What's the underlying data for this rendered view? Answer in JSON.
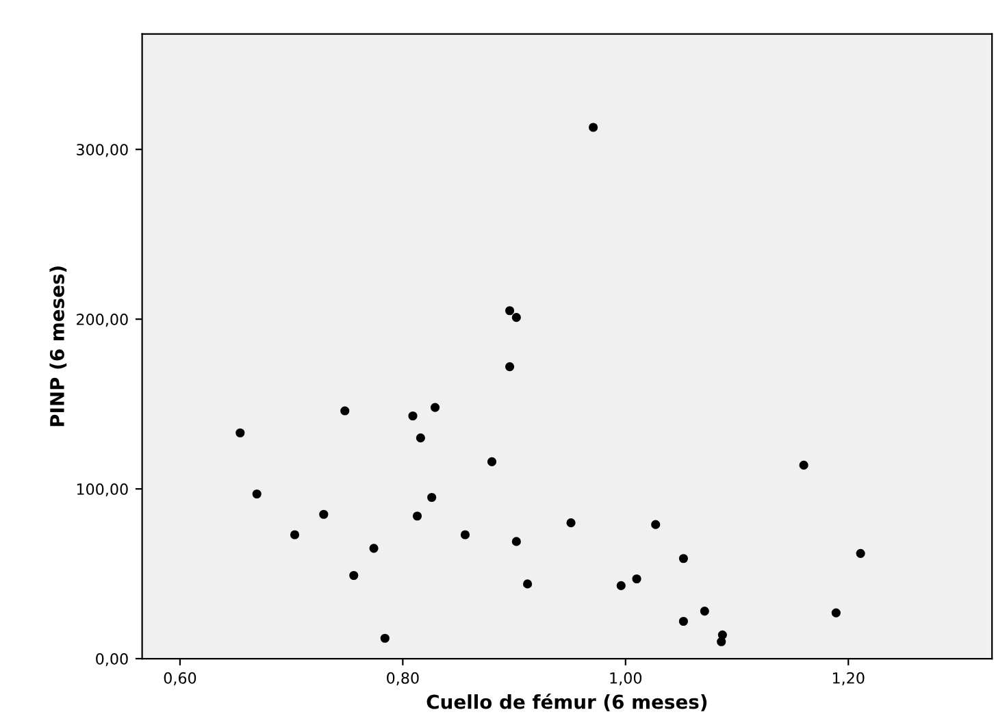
{
  "chart_data": {
    "type": "scatter",
    "xlabel": "Cuello de fémur (6 meses)",
    "ylabel": "PINP (6 meses)",
    "x": [
      0.654,
      0.669,
      0.703,
      0.729,
      0.748,
      0.756,
      0.774,
      0.784,
      0.809,
      0.813,
      0.816,
      0.826,
      0.829,
      0.856,
      0.88,
      0.896,
      0.896,
      0.902,
      0.902,
      0.912,
      0.951,
      0.971,
      0.996,
      1.01,
      1.027,
      1.052,
      1.052,
      1.071,
      1.087,
      1.086,
      1.16,
      1.211,
      1.189
    ],
    "values": [
      133,
      97,
      73,
      85,
      146,
      49,
      65,
      12,
      143,
      84,
      130,
      95,
      148,
      73,
      116,
      205,
      172,
      201,
      69,
      44,
      80,
      313,
      43,
      47,
      79,
      59,
      22,
      28,
      14,
      10,
      114,
      62,
      27
    ],
    "color": "#000000",
    "marker": "circle",
    "xlim": [
      0.566,
      1.329
    ],
    "ylim": [
      0,
      368
    ],
    "xticks": [
      {
        "value": 0.6,
        "label": "0,60"
      },
      {
        "value": 0.8,
        "label": "0,80"
      },
      {
        "value": 1.0,
        "label": "1,00"
      },
      {
        "value": 1.2,
        "label": "1,20"
      }
    ],
    "yticks": [
      {
        "value": 0,
        "label": "0,00"
      },
      {
        "value": 100,
        "label": "100,00"
      },
      {
        "value": 200,
        "label": "200,00"
      },
      {
        "value": 300,
        "label": "300,00"
      }
    ],
    "grid": false
  }
}
